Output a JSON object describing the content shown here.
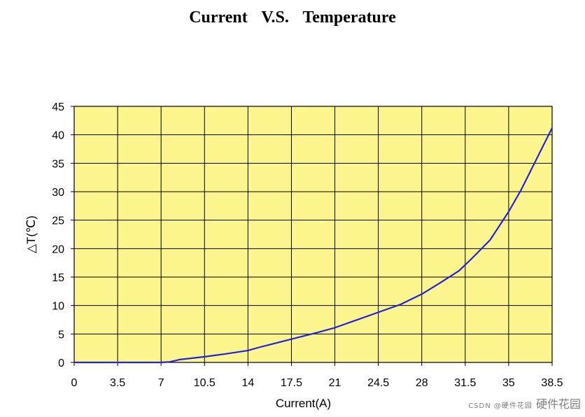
{
  "chart_data": {
    "type": "line",
    "title": "Current    V.S.    Temperature",
    "xlabel": "Current(A)",
    "ylabel": "△T(℃)",
    "x_ticks": [
      "0",
      "3.5",
      "7",
      "10.5",
      "14",
      "17.5",
      "21",
      "24.5",
      "28",
      "31.5",
      "35",
      "38.5"
    ],
    "y_ticks": [
      "0",
      "5",
      "10",
      "15",
      "20",
      "25",
      "30",
      "35",
      "40",
      "45"
    ],
    "xlim": [
      0,
      38.5
    ],
    "ylim": [
      0,
      45
    ],
    "grid": true,
    "plot_background": "#fdf68f",
    "line_color": "#2323d9",
    "series": [
      {
        "x": [
          0,
          3.5,
          7,
          7.7,
          8.5,
          10.5,
          12.2,
          14,
          15,
          17.5,
          19.5,
          21,
          24.5,
          26.3,
          28,
          29.5,
          31,
          32,
          33.5,
          35,
          36,
          38.5
        ],
        "y": [
          0,
          0,
          0,
          0.1,
          0.5,
          1.0,
          1.5,
          2.1,
          2.7,
          4.1,
          5.2,
          6.1,
          8.8,
          10.2,
          12.0,
          14.0,
          16.1,
          18.2,
          21.5,
          26.5,
          30.3,
          41.2
        ]
      }
    ]
  },
  "watermark": {
    "text": "硬件花园",
    "small": "CSDN @硬件花园"
  }
}
